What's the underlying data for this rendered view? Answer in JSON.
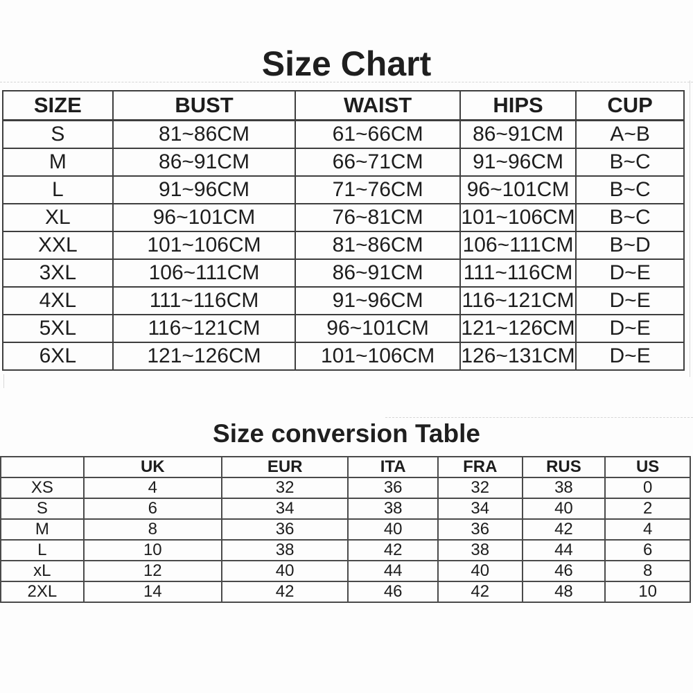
{
  "style": {
    "background": "#fdfdfd",
    "ink": "#1d1d1d",
    "table1_border": "#3e3e3e",
    "table2_border": "#4a4a4a",
    "faint_gridline": "#d6d6d6"
  },
  "size_chart": {
    "title": "Size Chart",
    "columns": [
      "SIZE",
      "BUST",
      "WAIST",
      "HIPS",
      "CUP"
    ],
    "rows": [
      [
        "S",
        "81~86CM",
        "61~66CM",
        "86~91CM",
        "A~B"
      ],
      [
        "M",
        "86~91CM",
        "66~71CM",
        "91~96CM",
        "B~C"
      ],
      [
        "L",
        "91~96CM",
        "71~76CM",
        "96~101CM",
        "B~C"
      ],
      [
        "XL",
        "96~101CM",
        "76~81CM",
        "101~106CM",
        "B~C"
      ],
      [
        "XXL",
        "101~106CM",
        "81~86CM",
        "106~111CM",
        "B~D"
      ],
      [
        "3XL",
        "106~111CM",
        "86~91CM",
        "111~116CM",
        "D~E"
      ],
      [
        "4XL",
        "111~116CM",
        "91~96CM",
        "116~121CM",
        "D~E"
      ],
      [
        "5XL",
        "116~121CM",
        "96~101CM",
        "121~126CM",
        "D~E"
      ],
      [
        "6XL",
        "121~126CM",
        "101~106CM",
        "126~131CM",
        "D~E"
      ]
    ]
  },
  "conversion_table": {
    "title": "Size conversion Table",
    "columns": [
      "",
      "UK",
      "EUR",
      "ITA",
      "FRA",
      "RUS",
      "US"
    ],
    "rows": [
      [
        "XS",
        "4",
        "32",
        "36",
        "32",
        "38",
        "0"
      ],
      [
        "S",
        "6",
        "34",
        "38",
        "34",
        "40",
        "2"
      ],
      [
        "M",
        "8",
        "36",
        "40",
        "36",
        "42",
        "4"
      ],
      [
        "L",
        "10",
        "38",
        "42",
        "38",
        "44",
        "6"
      ],
      [
        "xL",
        "12",
        "40",
        "44",
        "40",
        "46",
        "8"
      ],
      [
        "2XL",
        "14",
        "42",
        "46",
        "42",
        "48",
        "10"
      ]
    ]
  }
}
